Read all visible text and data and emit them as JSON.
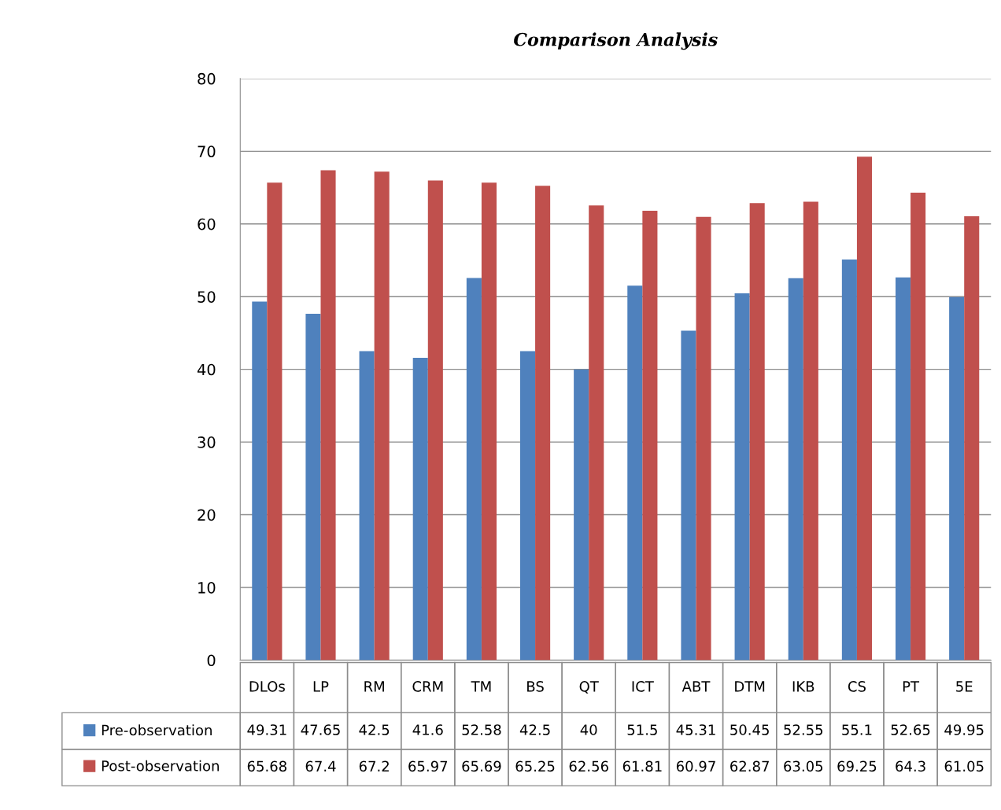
{
  "chart_data": {
    "type": "bar",
    "title": "Comparison Analysis",
    "categories": [
      "DLOs",
      "LP",
      "RM",
      "CRM",
      "TM",
      "BS",
      "QT",
      "ICT",
      "ABT",
      "DTM",
      "IKB",
      "CS",
      "PT",
      "5E"
    ],
    "series": [
      {
        "name": "Pre-observation",
        "color": "#4f81bd",
        "values": [
          49.31,
          47.65,
          42.5,
          41.6,
          52.58,
          42.5,
          40,
          51.5,
          45.31,
          50.45,
          52.55,
          55.1,
          52.65,
          49.95
        ]
      },
      {
        "name": "Post-observation",
        "color": "#c0504d",
        "values": [
          65.68,
          67.4,
          67.2,
          65.97,
          65.69,
          65.25,
          62.56,
          61.81,
          60.97,
          62.87,
          63.05,
          69.25,
          64.3,
          61.05
        ]
      }
    ],
    "ylim": [
      0,
      80
    ],
    "yticks": [
      0,
      10,
      20,
      30,
      40,
      50,
      60,
      70,
      80
    ],
    "grid": "y",
    "legend": "bottom",
    "data_labels": true
  }
}
